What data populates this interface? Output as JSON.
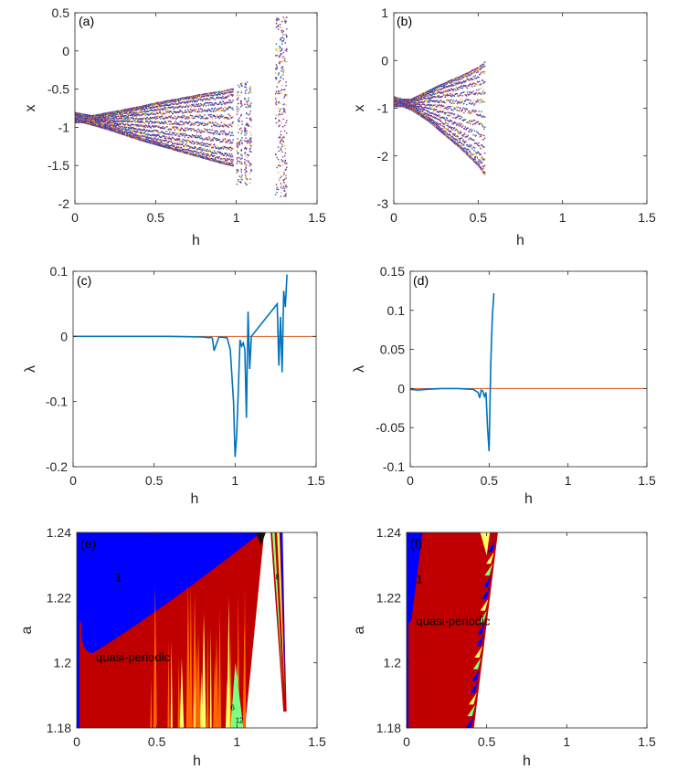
{
  "colors": {
    "series_a": "#7e2f8e",
    "series_b": "#edb120",
    "series_c": "#0072bd",
    "lyap": "#0072bd",
    "zero_line": "#d95319",
    "region_period1": "#0000ff",
    "region_quasi": "#c00000",
    "region_other": "#ff6600",
    "region_green": "#7fff7f",
    "region_yellow": "#ffff66"
  },
  "chart_data": [
    {
      "panel": "a",
      "label": "(a)",
      "type": "scatter",
      "xlabel": "h",
      "ylabel": "x",
      "xlim": [
        0,
        1.5
      ],
      "ylim": [
        -2,
        0.5
      ],
      "xticks": [
        0,
        0.5,
        1,
        1.5
      ],
      "xtick_labels": [
        "0",
        "0.5",
        "1",
        "1.5"
      ],
      "yticks": [
        -2,
        -1.5,
        -1,
        -0.5,
        0,
        0.5
      ],
      "ytick_labels": [
        "-2",
        "-1.5",
        "-1",
        "-0.5",
        "0",
        "0.5"
      ],
      "envelope_h": [
        0,
        0.05,
        0.1,
        0.2,
        0.3,
        0.4,
        0.5,
        0.6,
        0.7,
        0.8,
        0.9,
        0.98
      ],
      "envelope_upper": [
        -0.8,
        -0.82,
        -0.84,
        -0.8,
        -0.76,
        -0.72,
        -0.67,
        -0.63,
        -0.59,
        -0.55,
        -0.52,
        -0.48
      ],
      "envelope_lower": [
        -0.93,
        -0.93,
        -0.96,
        -1.02,
        -1.09,
        -1.16,
        -1.22,
        -1.28,
        -1.34,
        -1.4,
        -1.46,
        -1.5
      ],
      "extra_bands": [
        {
          "h": [
            1.0,
            1.09
          ],
          "y": [
            -1.75,
            -0.4
          ]
        },
        {
          "h": [
            1.24,
            1.31
          ],
          "y": [
            -1.9,
            0.45
          ]
        }
      ],
      "grid": false
    },
    {
      "panel": "b",
      "label": "(b)",
      "type": "scatter",
      "xlabel": "h",
      "ylabel": "x",
      "xlim": [
        0,
        1.5
      ],
      "ylim": [
        -3,
        1
      ],
      "xticks": [
        0,
        0.5,
        1,
        1.5
      ],
      "xtick_labels": [
        "0",
        "0.5",
        "1",
        "1.5"
      ],
      "yticks": [
        -3,
        -2,
        -1,
        0,
        1
      ],
      "ytick_labels": [
        "-3",
        "-2",
        "-1",
        "0",
        "1"
      ],
      "envelope_h": [
        0,
        0.05,
        0.1,
        0.2,
        0.3,
        0.4,
        0.5,
        0.54
      ],
      "envelope_upper": [
        -0.75,
        -0.8,
        -0.8,
        -0.62,
        -0.45,
        -0.3,
        -0.12,
        0.0
      ],
      "envelope_lower": [
        -0.95,
        -0.95,
        -1.02,
        -1.25,
        -1.55,
        -1.85,
        -2.2,
        -2.4
      ],
      "grid": false
    },
    {
      "panel": "c",
      "label": "(c)",
      "type": "line",
      "xlabel": "h",
      "ylabel": "λ",
      "xlim": [
        0,
        1.5
      ],
      "ylim": [
        -0.2,
        0.1
      ],
      "xticks": [
        0,
        0.5,
        1,
        1.5
      ],
      "xtick_labels": [
        "0",
        "0.5",
        "1",
        "1.5"
      ],
      "yticks": [
        -0.2,
        -0.1,
        0,
        0.1
      ],
      "ytick_labels": [
        "-0.2",
        "-0.1",
        "0",
        "0.1"
      ],
      "x": [
        0,
        0.2,
        0.4,
        0.6,
        0.8,
        0.84,
        0.85,
        0.86,
        0.87,
        0.9,
        0.95,
        0.97,
        0.99,
        1.0,
        1.01,
        1.02,
        1.03,
        1.04,
        1.05,
        1.06,
        1.07,
        1.08,
        1.09,
        1.1,
        1.26,
        1.27,
        1.28,
        1.29,
        1.3,
        1.31,
        1.32
      ],
      "y": [
        0,
        0,
        0,
        0,
        -0.001,
        -0.002,
        -0.001,
        -0.003,
        -0.022,
        -0.001,
        -0.002,
        -0.02,
        -0.1,
        -0.185,
        -0.15,
        -0.08,
        -0.005,
        -0.015,
        -0.01,
        -0.02,
        -0.125,
        0.038,
        -0.05,
        0,
        0.05,
        -0.045,
        0.03,
        -0.055,
        0.07,
        0.045,
        0.095
      ],
      "reference_line": 0,
      "grid": false
    },
    {
      "panel": "d",
      "label": "(d)",
      "type": "line",
      "xlabel": "h",
      "ylabel": "λ",
      "xlim": [
        0,
        1.5
      ],
      "ylim": [
        -0.1,
        0.15
      ],
      "xticks": [
        0,
        0.5,
        1,
        1.5
      ],
      "xtick_labels": [
        "0",
        "0.5",
        "1",
        "1.5"
      ],
      "yticks": [
        -0.1,
        -0.05,
        0,
        0.05,
        0.1,
        0.15
      ],
      "ytick_labels": [
        "-0.1",
        "-0.05",
        "0",
        "0.05",
        "0.1",
        "0.15"
      ],
      "x": [
        0,
        0.05,
        0.1,
        0.2,
        0.3,
        0.4,
        0.43,
        0.44,
        0.45,
        0.46,
        0.47,
        0.48,
        0.49,
        0.5,
        0.51,
        0.52,
        0.53
      ],
      "y": [
        -0.001,
        -0.002,
        -0.001,
        0,
        0,
        -0.001,
        -0.005,
        -0.012,
        -0.002,
        -0.003,
        -0.01,
        -0.005,
        -0.05,
        -0.08,
        0.03,
        0.09,
        0.122
      ],
      "reference_line": 0,
      "grid": false
    },
    {
      "panel": "e",
      "label": "(e)",
      "type": "heatmap",
      "xlabel": "h",
      "ylabel": "a",
      "xlim": [
        0,
        1.5
      ],
      "ylim": [
        1.18,
        1.24
      ],
      "xticks": [
        0,
        0.5,
        1,
        1.5
      ],
      "xtick_labels": [
        "0",
        "0.5",
        "1",
        "1.5"
      ],
      "yticks": [
        1.18,
        1.2,
        1.22,
        1.24
      ],
      "ytick_labels": [
        "1.18",
        "1.2",
        "1.22",
        "1.24"
      ],
      "annotations": [
        {
          "text": "1",
          "h": 0.24,
          "a": 1.225
        },
        {
          "text": "quasi-periodic",
          "h": 0.12,
          "a": 1.2005
        },
        {
          "text": "6",
          "h": 0.96,
          "a": 1.1855
        },
        {
          "text": "12",
          "h": 0.99,
          "a": 1.1815
        },
        {
          "text": "8",
          "h": 1.24,
          "a": 1.2255
        }
      ],
      "grid": false
    },
    {
      "panel": "f",
      "label": "(f)",
      "type": "heatmap",
      "xlabel": "h",
      "ylabel": "a",
      "xlim": [
        0,
        1.5
      ],
      "ylim": [
        1.18,
        1.24
      ],
      "xticks": [
        0,
        0.5,
        1,
        1.5
      ],
      "xtick_labels": [
        "0",
        "0.5",
        "1",
        "1.5"
      ],
      "yticks": [
        1.18,
        1.2,
        1.22,
        1.24
      ],
      "ytick_labels": [
        "1.18",
        "1.2",
        "1.22",
        "1.24"
      ],
      "annotations": [
        {
          "text": "1",
          "h": 0.06,
          "a": 1.2245
        },
        {
          "text": "quasi-periodic",
          "h": 0.06,
          "a": 1.2115
        }
      ],
      "grid": false
    }
  ]
}
